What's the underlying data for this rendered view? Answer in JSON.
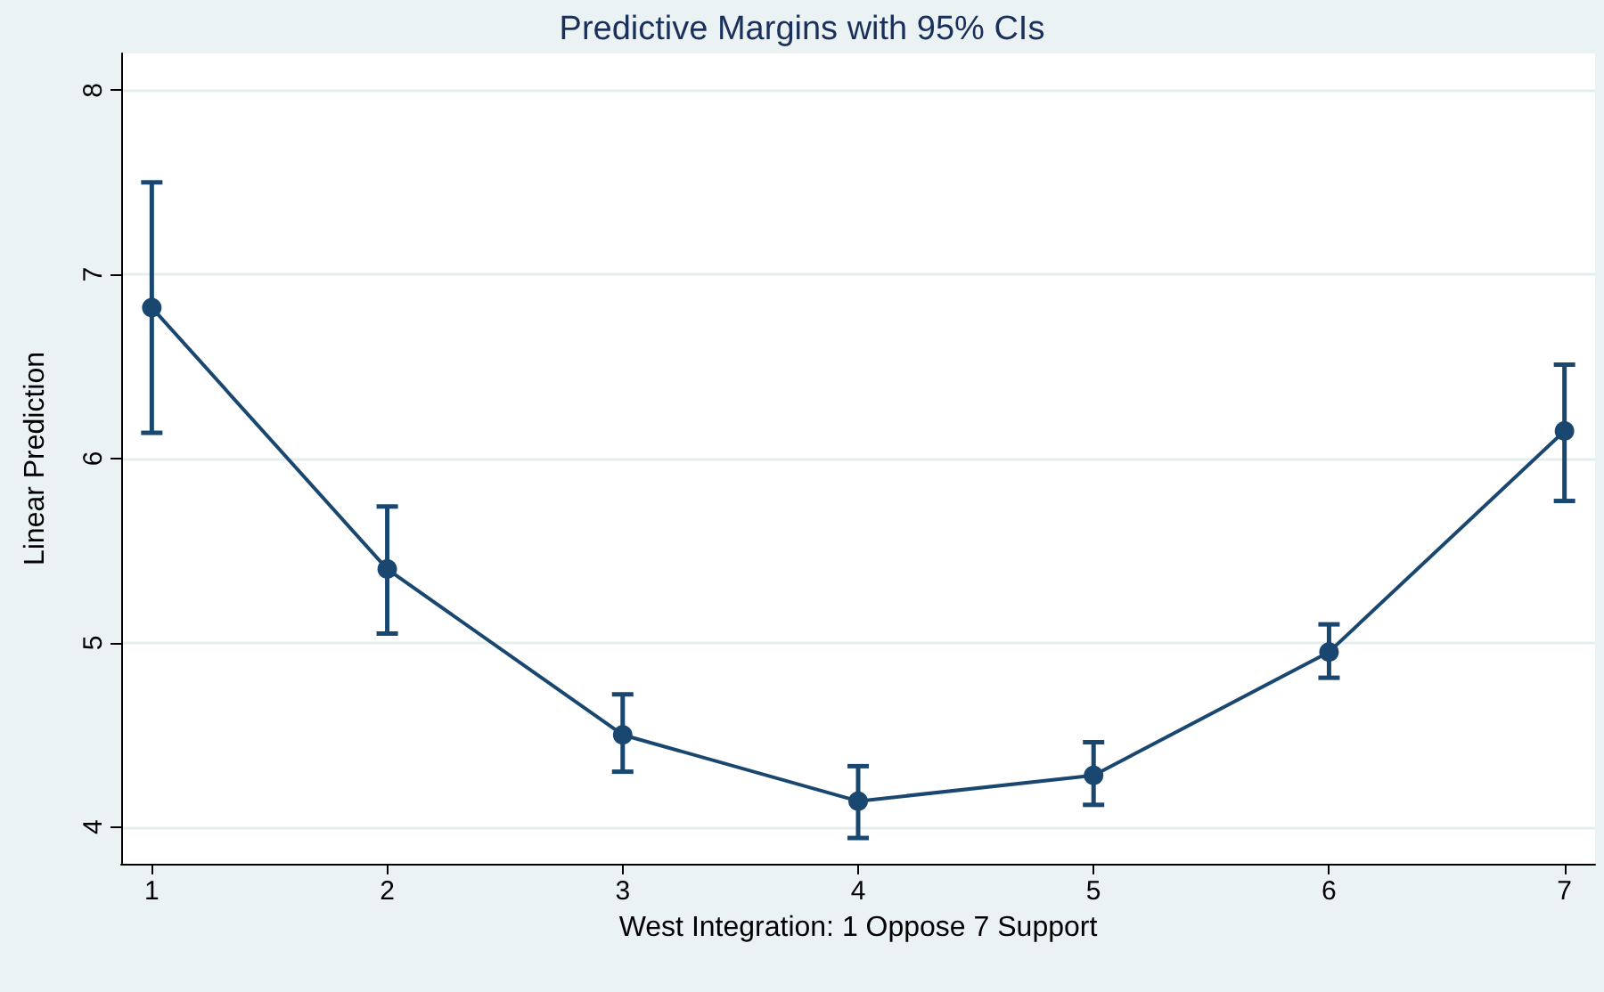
{
  "chart_data": {
    "type": "line",
    "title": "Predictive Margins with 95% CIs",
    "xlabel": "West Integration: 1 Oppose 7 Support",
    "ylabel": "Linear Prediction",
    "x": [
      1,
      2,
      3,
      4,
      5,
      6,
      7
    ],
    "series": [
      {
        "color": "#1a476f",
        "values": [
          6.82,
          5.4,
          4.5,
          4.14,
          4.28,
          4.95,
          6.15
        ],
        "errors": [
          [
            6.14,
            7.5
          ],
          [
            5.05,
            5.74
          ],
          [
            4.3,
            4.72
          ],
          [
            3.94,
            4.33
          ],
          [
            4.12,
            4.46
          ],
          [
            4.81,
            5.1
          ],
          [
            5.77,
            6.51
          ]
        ]
      }
    ],
    "xlim": [
      0.87,
      7.13
    ],
    "ylim": [
      3.8,
      8.2
    ],
    "xticks": [
      1,
      2,
      3,
      4,
      5,
      6,
      7
    ],
    "yticks": [
      4,
      5,
      6,
      7,
      8
    ],
    "grid": "y",
    "marker": "circle",
    "line_style": "solid"
  }
}
